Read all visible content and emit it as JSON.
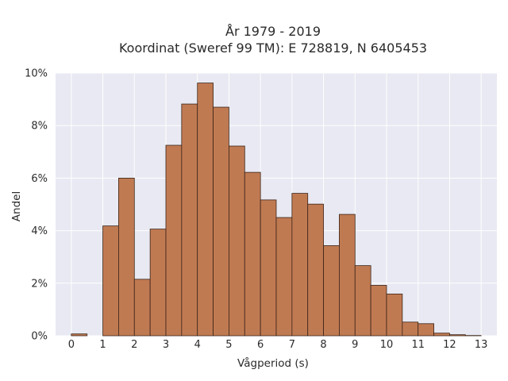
{
  "chart_data": {
    "type": "bar",
    "title_line1": "År 1979 - 2019",
    "title_line2": "Koordinat (Sweref 99 TM): E 728819, N 6405453",
    "xlabel": "Vågperiod (s)",
    "ylabel": "Andel",
    "bin_width": 0.5,
    "bin_starts": [
      0,
      0.5,
      1,
      1.5,
      2,
      2.5,
      3,
      3.5,
      4,
      4.5,
      5,
      5.5,
      6,
      6.5,
      7,
      7.5,
      8,
      8.5,
      9,
      9.5,
      10,
      10.5,
      11,
      11.5,
      12,
      12.5
    ],
    "values": [
      0.07,
      0,
      4.18,
      6.0,
      2.15,
      4.06,
      7.25,
      8.82,
      9.62,
      8.7,
      7.22,
      6.22,
      5.17,
      4.5,
      5.42,
      5.01,
      3.43,
      4.62,
      2.67,
      1.92,
      1.59,
      0.52,
      0.46,
      0.1,
      0.04,
      0.01
    ],
    "xlim": [
      -0.5,
      13.5
    ],
    "ylim": [
      0,
      10
    ],
    "xticks": [
      0,
      1,
      2,
      3,
      4,
      5,
      6,
      7,
      8,
      9,
      10,
      11,
      12,
      13
    ],
    "yticks": [
      0,
      2,
      4,
      6,
      8,
      10
    ],
    "ytick_suffix": "%",
    "grid": true,
    "colors": {
      "bar_fill": "#c07a52",
      "bar_edge": "#3b2418",
      "plot_bg": "#e8e9f2",
      "grid": "#ffffff"
    }
  }
}
